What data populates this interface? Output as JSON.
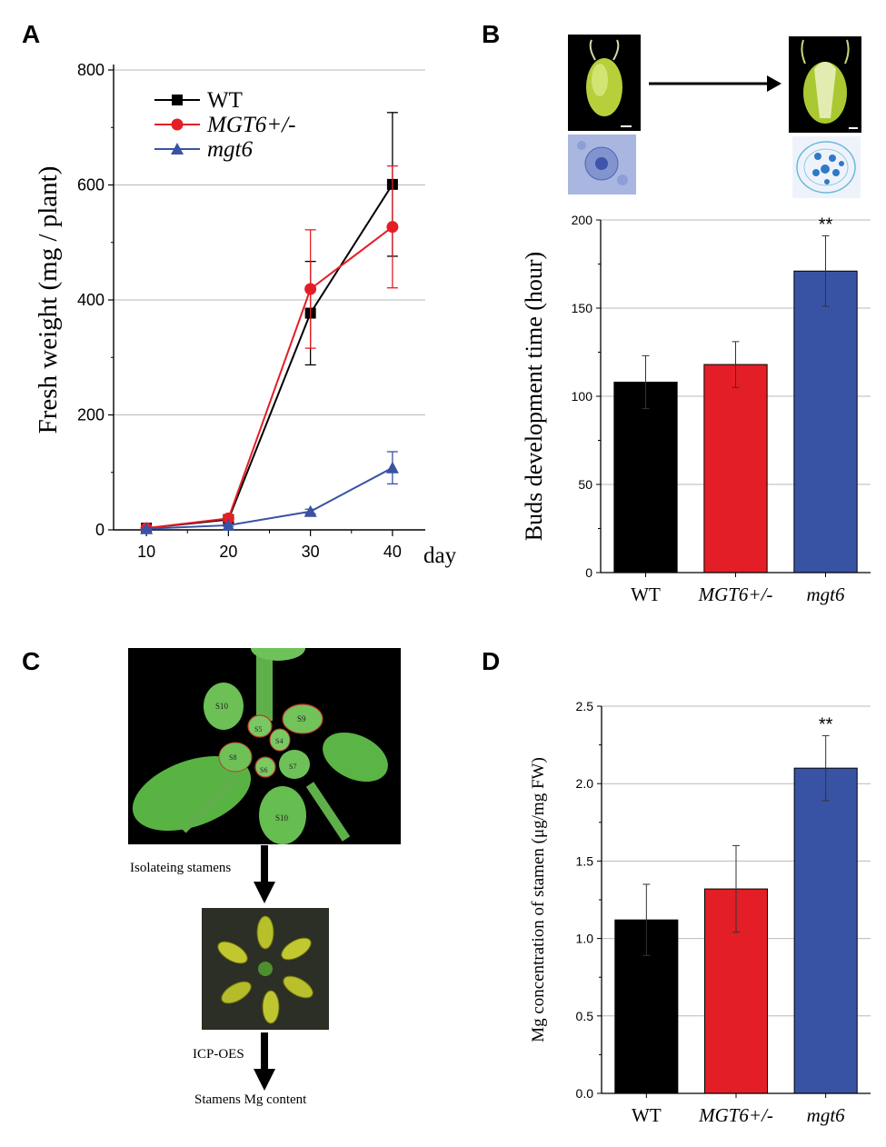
{
  "panels": {
    "a": "A",
    "b": "B",
    "c": "C",
    "d": "D"
  },
  "colors": {
    "wt": "#000000",
    "het": "#e41e26",
    "mut": "#3953a4",
    "grid": "#b9b9b9"
  },
  "chart_data": [
    {
      "id": "A",
      "type": "line",
      "ylabel": "Fresh weight (mg / plant)",
      "xlabel": "day",
      "x": [
        10,
        20,
        30,
        40
      ],
      "xticks": [
        "10",
        "20",
        "30",
        "40"
      ],
      "xlim": [
        6,
        44
      ],
      "yticks": [
        "0",
        "200",
        "400",
        "600",
        "800"
      ],
      "ylim": [
        0,
        800
      ],
      "grid": true,
      "legend": "top-left",
      "series": [
        {
          "name": "WT",
          "marker": "square",
          "values": [
            3,
            18,
            377,
            601
          ],
          "errors": [
            2,
            4,
            90,
            125
          ]
        },
        {
          "name": "MGT6+/-",
          "marker": "circle",
          "values": [
            3,
            20,
            419,
            527
          ],
          "errors": [
            2,
            4,
            103,
            106
          ]
        },
        {
          "name": "mgt6",
          "marker": "triangle",
          "values": [
            2,
            8,
            32,
            108
          ],
          "errors": [
            1,
            2,
            4,
            28
          ]
        }
      ]
    },
    {
      "id": "B",
      "type": "bar",
      "ylabel": "Buds development time (hour)",
      "categories": [
        "WT",
        "MGT6+/-",
        "mgt6"
      ],
      "values": [
        108,
        118,
        171
      ],
      "errors": [
        15,
        13,
        20
      ],
      "yticks": [
        "0",
        "50",
        "100",
        "150",
        "200"
      ],
      "ylim": [
        0,
        200
      ],
      "grid": true,
      "annotation": "**",
      "annotation_category": "mgt6"
    },
    {
      "id": "D",
      "type": "bar",
      "ylabel": "Mg concentration of stamen (μg/mg FW)",
      "categories": [
        "WT",
        "MGT6+/-",
        "mgt6"
      ],
      "values": [
        1.12,
        1.32,
        2.1
      ],
      "errors": [
        0.23,
        0.28,
        0.21
      ],
      "yticks": [
        "0.0",
        "0.5",
        "1.0",
        "1.5",
        "2.0",
        "2.5"
      ],
      "ylim": [
        0,
        2.5
      ],
      "grid": true,
      "annotation": "**",
      "annotation_category": "mgt6"
    }
  ],
  "panel_c": {
    "bud_labels": [
      "S10",
      "S9",
      "S5",
      "S4",
      "S8",
      "S6",
      "S7",
      "S10"
    ],
    "steps": [
      "Isolateing stamens",
      "ICP-OES",
      "Stamens Mg content"
    ]
  }
}
